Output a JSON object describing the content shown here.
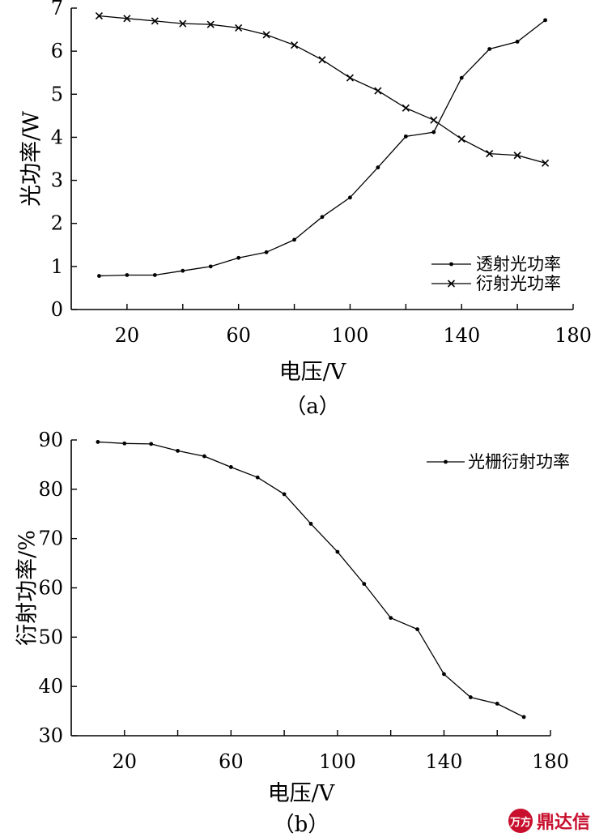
{
  "chart_data": [
    {
      "type": "line",
      "caption": "（a）",
      "xlabel": "电压/V",
      "ylabel": "光功率/W",
      "xlim": [
        0,
        180
      ],
      "ylim": [
        0,
        7
      ],
      "xticks": [
        20,
        60,
        100,
        140,
        180
      ],
      "yticks": [
        0,
        1,
        2,
        3,
        4,
        5,
        6,
        7
      ],
      "grid": false,
      "legend_position": "bottom-right",
      "x": [
        10,
        20,
        30,
        40,
        50,
        60,
        70,
        80,
        90,
        100,
        110,
        120,
        130,
        140,
        150,
        160,
        170
      ],
      "series": [
        {
          "name": "透射光功率",
          "marker": "dot",
          "values": [
            0.78,
            0.8,
            0.8,
            0.9,
            1.0,
            1.2,
            1.33,
            1.62,
            2.15,
            2.6,
            3.3,
            4.02,
            4.12,
            5.38,
            6.05,
            6.22,
            6.72
          ]
        },
        {
          "name": "衍射光功率",
          "marker": "cross",
          "values": [
            6.82,
            6.76,
            6.7,
            6.64,
            6.62,
            6.54,
            6.38,
            6.14,
            5.8,
            5.38,
            5.08,
            4.68,
            4.4,
            3.96,
            3.62,
            3.58,
            3.4
          ]
        }
      ]
    },
    {
      "type": "line",
      "caption": "（b）",
      "xlabel": "电压/V",
      "ylabel": "衍射功率/%",
      "xlim": [
        0,
        180
      ],
      "ylim": [
        30,
        90
      ],
      "xticks": [
        20,
        60,
        100,
        140,
        180
      ],
      "yticks": [
        30,
        40,
        50,
        60,
        70,
        80,
        90
      ],
      "grid": false,
      "legend_position": "top-right",
      "x": [
        10,
        20,
        30,
        40,
        50,
        60,
        70,
        80,
        90,
        100,
        110,
        120,
        130,
        140,
        150,
        160,
        170
      ],
      "series": [
        {
          "name": "光栅衍射功率",
          "marker": "dot",
          "values": [
            89.6,
            89.3,
            89.2,
            87.8,
            86.7,
            84.5,
            82.4,
            79.0,
            73.0,
            67.3,
            60.8,
            53.9,
            51.6,
            42.5,
            37.8,
            36.5,
            33.8
          ]
        }
      ]
    }
  ],
  "watermark": {
    "logo_text": "万方",
    "text": "鼎达信"
  }
}
